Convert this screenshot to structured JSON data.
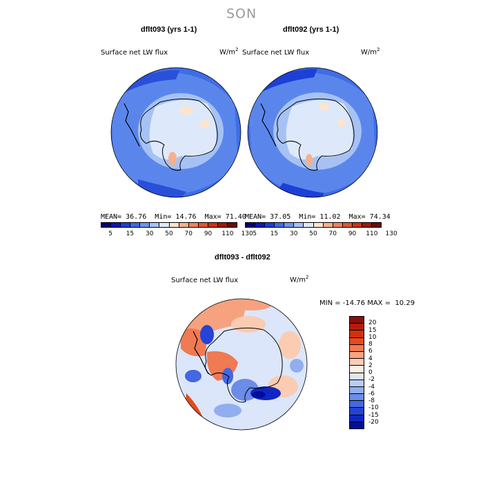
{
  "figure": {
    "season": "SON",
    "panel_left": {
      "title": "dflt093 (yrs 1-1)",
      "variable": "Surface net LW flux",
      "units_base": "W/m",
      "units_exp": "2",
      "stats": {
        "mean_label": "MEAN=",
        "mean": "36.76",
        "min_label": "Min=",
        "min": "14.76",
        "max_label": "Max=",
        "max": "71.40"
      }
    },
    "panel_right": {
      "title": "dflt092 (yrs 1-1)",
      "variable": "Surface net LW flux",
      "units_base": "W/m",
      "units_exp": "2",
      "stats": {
        "mean_label": "MEAN=",
        "mean": "37.05",
        "min_label": "Min=",
        "min": "11.02",
        "max_label": "Max=",
        "max": "74.34"
      }
    },
    "panel_diff": {
      "title": "dflt093 - dflt092",
      "variable": "Surface net LW flux",
      "units_base": "W/m",
      "units_exp": "2",
      "stats_text": "MIN = -14.76 MAX =  10.29"
    }
  },
  "colorbar_main": {
    "colors": [
      "#00007a",
      "#0a18b8",
      "#1c3fd8",
      "#3f69e8",
      "#6f94ee",
      "#a6c2f4",
      "#dde9fb",
      "#fde4cc",
      "#f7b08c",
      "#ef8060",
      "#e3542e",
      "#cc3311",
      "#9c1a0a",
      "#6a0a06"
    ],
    "ticks": [
      "5",
      "15",
      "30",
      "50",
      "70",
      "90",
      "110",
      "130"
    ]
  },
  "colorbar_diff": {
    "colors": [
      "#8a0f0f",
      "#b41d0c",
      "#d2310f",
      "#e64a1c",
      "#f07a52",
      "#f6a27f",
      "#fbcbb2",
      "#fdf0e4",
      "#dbe6fa",
      "#b8cdf3",
      "#91aeee",
      "#6b8ce7",
      "#4467e2",
      "#2544d6",
      "#1026c4",
      "#000e9a"
    ],
    "ticks": [
      "20",
      "15",
      "10",
      "8",
      "6",
      "4",
      "2",
      "0",
      "-2",
      "-4",
      "-6",
      "-8",
      "-10",
      "-15",
      "-20"
    ]
  }
}
